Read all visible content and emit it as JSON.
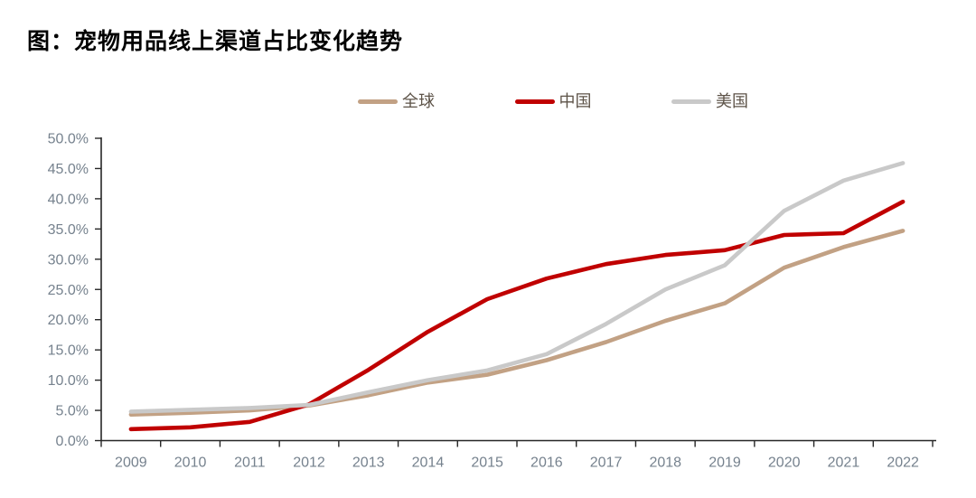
{
  "page": {
    "title": "图：宠物用品线上渠道占比变化趋势"
  },
  "chart_data": {
    "type": "line",
    "title": "宠物用品线上渠道占比变化趋势",
    "categories": [
      "2009",
      "2010",
      "2011",
      "2012",
      "2013",
      "2014",
      "2015",
      "2016",
      "2017",
      "2018",
      "2019",
      "2020",
      "2021",
      "2022"
    ],
    "series": [
      {
        "key": "global",
        "name": "全球",
        "color": "#C2A184",
        "values": [
          4.3,
          4.6,
          5.0,
          5.8,
          7.5,
          9.6,
          10.9,
          13.3,
          16.3,
          19.8,
          22.7,
          28.6,
          32.0,
          34.7
        ]
      },
      {
        "key": "china",
        "name": "中国",
        "color": "#C00000",
        "values": [
          1.9,
          2.2,
          3.1,
          6.0,
          11.7,
          18.0,
          23.4,
          26.8,
          29.2,
          30.7,
          31.5,
          34.0,
          34.3,
          39.5
        ]
      },
      {
        "key": "usa",
        "name": "美国",
        "color": "#C9C9C9",
        "values": [
          4.8,
          5.1,
          5.4,
          5.9,
          8.0,
          10.0,
          11.6,
          14.3,
          19.3,
          25.0,
          29.0,
          38.0,
          43.0,
          45.9
        ]
      }
    ],
    "xlabel": "",
    "ylabel": "",
    "ylim": [
      0,
      50
    ],
    "y_tick_step": 5,
    "y_tick_suffix": "%",
    "y_tick_labels": [
      "0.0%",
      "5.0%",
      "10.0%",
      "15.0%",
      "20.0%",
      "25.0%",
      "30.0%",
      "35.0%",
      "40.0%",
      "45.0%",
      "50.0%"
    ],
    "grid": false,
    "legend_position": "top",
    "axis_color": "#262626",
    "tick_label_color": "#76828E"
  }
}
